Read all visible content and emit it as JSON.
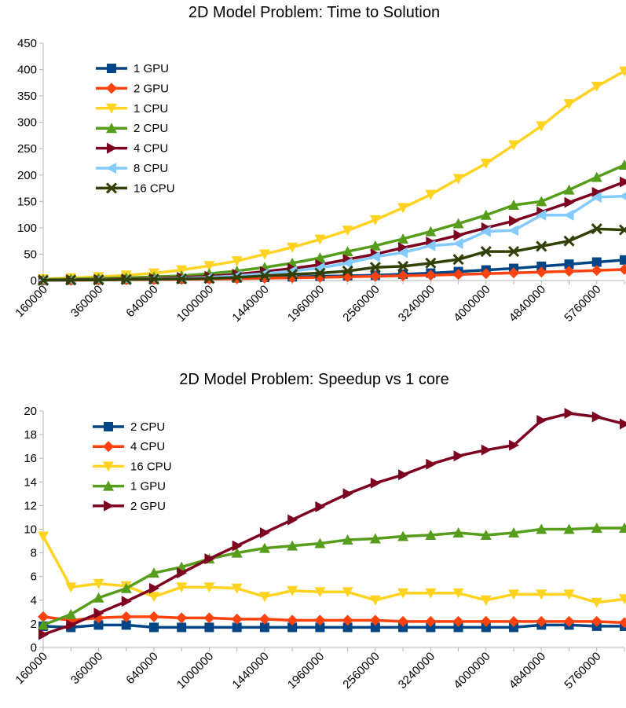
{
  "chart_data": [
    {
      "type": "line",
      "title": "2D Model Problem: Time to Solution",
      "xlabel": "",
      "ylabel": "",
      "ylim": [
        0,
        450
      ],
      "yticks": [
        "0",
        "50",
        "100",
        "150",
        "200",
        "250",
        "300",
        "350",
        "400",
        "450"
      ],
      "x_tick_labels": [
        "160000",
        "360000",
        "640000",
        "1000000",
        "1440000",
        "1960000",
        "2560000",
        "3240000",
        "4000000",
        "4840000",
        "5760000"
      ],
      "categories": [
        "160000",
        "250000",
        "360000",
        "490000",
        "640000",
        "810000",
        "1000000",
        "1210000",
        "1440000",
        "1690000",
        "1960000",
        "2250000",
        "2560000",
        "2890000",
        "3240000",
        "3610000",
        "4000000",
        "4410000",
        "4840000",
        "5290000",
        "5760000",
        "6250000"
      ],
      "grid": false,
      "legend": "top-left",
      "series": [
        {
          "name": "1 GPU",
          "color": "#004586",
          "marker": "square",
          "values": [
            0.5,
            1,
            1.5,
            2,
            2.5,
            3,
            4,
            5,
            6,
            7,
            8,
            9,
            10,
            12,
            14,
            17,
            20,
            23,
            27,
            31,
            35,
            39
          ]
        },
        {
          "name": "2 GPU",
          "color": "#ff420e",
          "marker": "diamond",
          "values": [
            0.3,
            0.6,
            1,
            1.4,
            1.8,
            2.2,
            3,
            3.6,
            4.5,
            5.2,
            6,
            7,
            8,
            9,
            10,
            11.5,
            13,
            14.5,
            16,
            17.5,
            19,
            21
          ]
        },
        {
          "name": "1 CPU",
          "color": "#ffd320",
          "marker": "triangle-down",
          "values": [
            3,
            5,
            7,
            10,
            14,
            20,
            28,
            37,
            50,
            63,
            78,
            95,
            115,
            138,
            163,
            193,
            222,
            257,
            293,
            335,
            368,
            397
          ]
        },
        {
          "name": "2 CPU",
          "color": "#579d1c",
          "marker": "triangle-up",
          "values": [
            2,
            3,
            4,
            5,
            7,
            9,
            13,
            18,
            25,
            33,
            43,
            55,
            66,
            79,
            93,
            108,
            124,
            143,
            150,
            172,
            196,
            219
          ]
        },
        {
          "name": "4 CPU",
          "color": "#7e0021",
          "marker": "triangle-right",
          "values": [
            1,
            1.5,
            2,
            3,
            4,
            6,
            8,
            12,
            17,
            23,
            30,
            40,
            50,
            62,
            73,
            86,
            100,
            113,
            130,
            148,
            167,
            187
          ]
        },
        {
          "name": "8 CPU",
          "color": "#83caff",
          "marker": "triangle-left",
          "values": [
            0.5,
            1,
            1.5,
            2,
            3,
            4,
            6,
            9,
            13,
            18,
            24,
            33,
            45,
            53,
            66,
            70,
            93,
            95,
            124,
            124,
            158,
            160
          ]
        },
        {
          "name": "16 CPU",
          "color": "#314004",
          "marker": "x",
          "values": [
            0.5,
            1,
            1.2,
            2,
            2.5,
            3,
            4,
            6,
            9,
            12,
            14,
            18,
            25,
            27,
            33,
            40,
            55,
            55,
            65,
            75,
            98,
            96
          ]
        }
      ]
    },
    {
      "type": "line",
      "title": "2D Model Problem: Speedup vs 1 core",
      "xlabel": "",
      "ylabel": "",
      "ylim": [
        0,
        20
      ],
      "yticks": [
        "0",
        "2",
        "4",
        "6",
        "8",
        "10",
        "12",
        "14",
        "16",
        "18",
        "20"
      ],
      "x_tick_labels": [
        "160000",
        "360000",
        "640000",
        "1000000",
        "1440000",
        "1960000",
        "2560000",
        "3240000",
        "4000000",
        "4840000",
        "5760000"
      ],
      "categories": [
        "160000",
        "250000",
        "360000",
        "490000",
        "640000",
        "810000",
        "1000000",
        "1210000",
        "1440000",
        "1690000",
        "1960000",
        "2250000",
        "2560000",
        "2890000",
        "3240000",
        "3610000",
        "4000000",
        "4410000",
        "4840000",
        "5290000",
        "5760000",
        "6250000"
      ],
      "grid": false,
      "legend": "top-left",
      "series": [
        {
          "name": "2 CPU",
          "color": "#004586",
          "marker": "square",
          "values": [
            1.8,
            1.7,
            1.9,
            1.9,
            1.7,
            1.7,
            1.7,
            1.7,
            1.7,
            1.7,
            1.7,
            1.7,
            1.7,
            1.7,
            1.7,
            1.7,
            1.7,
            1.7,
            1.9,
            1.9,
            1.8,
            1.8
          ]
        },
        {
          "name": "4 CPU",
          "color": "#ff420e",
          "marker": "diamond",
          "values": [
            2.6,
            2.3,
            2.5,
            2.6,
            2.6,
            2.5,
            2.5,
            2.4,
            2.4,
            2.3,
            2.3,
            2.3,
            2.3,
            2.2,
            2.2,
            2.2,
            2.2,
            2.2,
            2.2,
            2.2,
            2.2,
            2.1
          ]
        },
        {
          "name": "16 CPU",
          "color": "#ffd320",
          "marker": "triangle-down",
          "values": [
            9.4,
            5.1,
            5.4,
            5.2,
            4.3,
            5.1,
            5.1,
            5.0,
            4.3,
            4.8,
            4.7,
            4.7,
            4.0,
            4.6,
            4.6,
            4.6,
            4.0,
            4.5,
            4.5,
            4.5,
            3.8,
            4.1
          ]
        },
        {
          "name": "1 GPU",
          "color": "#579d1c",
          "marker": "triangle-up",
          "values": [
            1.9,
            2.8,
            4.2,
            5.0,
            6.3,
            6.8,
            7.5,
            8.0,
            8.4,
            8.6,
            8.8,
            9.1,
            9.2,
            9.4,
            9.5,
            9.7,
            9.5,
            9.7,
            10.0,
            10.0,
            10.1,
            10.1
          ]
        },
        {
          "name": "2 GPU",
          "color": "#7e0021",
          "marker": "triangle-right",
          "values": [
            1.1,
            1.9,
            2.9,
            3.9,
            5.0,
            6.3,
            7.5,
            8.6,
            9.7,
            10.8,
            11.9,
            13.0,
            13.9,
            14.6,
            15.5,
            16.2,
            16.7,
            17.1,
            19.2,
            19.8,
            19.5,
            18.9
          ]
        }
      ]
    }
  ]
}
